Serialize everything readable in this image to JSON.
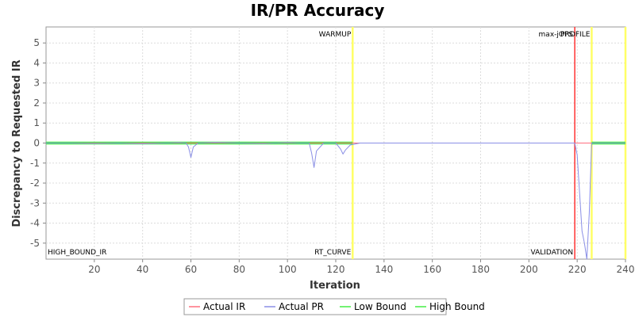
{
  "chart_data": {
    "type": "line",
    "title": "IR/PR Accuracy",
    "xlabel": "Iteration",
    "ylabel": "Discrepancy to Requested IR",
    "xlim": [
      0,
      240
    ],
    "ylim": [
      -5.8,
      5.8
    ],
    "xticks": [
      20,
      40,
      60,
      80,
      100,
      120,
      140,
      160,
      180,
      200,
      220,
      240
    ],
    "yticks": [
      -5,
      -4,
      -3,
      -2,
      -1,
      0,
      1,
      2,
      3,
      4,
      5
    ],
    "grid": true,
    "legend_position": "bottom",
    "series": [
      {
        "name": "Actual IR",
        "color": "#ff6f7f",
        "x": [
          0,
          30,
          60,
          90,
          120,
          150,
          180,
          210,
          240
        ],
        "values": [
          0,
          0,
          0,
          0,
          0,
          0,
          0,
          0,
          0
        ]
      },
      {
        "name": "Actual PR",
        "color": "#8a8fe6",
        "x": [
          0,
          10,
          20,
          30,
          40,
          50,
          55,
          58,
          59,
          60,
          61,
          63,
          70,
          80,
          90,
          100,
          105,
          109,
          110,
          111,
          112,
          115,
          120,
          122,
          123,
          124,
          126,
          130,
          140,
          160,
          180,
          200,
          218,
          219,
          220,
          221,
          222,
          223,
          224,
          225,
          226,
          230,
          240
        ],
        "values": [
          0,
          0,
          -0.02,
          0,
          -0.03,
          0,
          0.02,
          0,
          -0.2,
          -0.72,
          -0.2,
          0,
          0.03,
          0,
          -0.02,
          0.02,
          0,
          0,
          -0.5,
          -1.22,
          -0.4,
          0,
          0,
          -0.3,
          -0.55,
          -0.35,
          -0.1,
          0,
          0,
          0,
          0,
          0,
          0,
          0,
          -0.6,
          -2.5,
          -4.4,
          -5.0,
          -5.8,
          -3.5,
          0,
          0,
          0
        ]
      },
      {
        "name": "Low Bound",
        "color": "#44ee44",
        "x": [
          0,
          127,
          220,
          226,
          240
        ],
        "values": [
          -0.03,
          -0.03,
          null,
          -0.03,
          -0.03
        ]
      },
      {
        "name": "High Bound",
        "color": "#44ee44",
        "x": [
          0,
          127,
          220,
          226,
          240
        ],
        "values": [
          0.03,
          0.03,
          null,
          0.03,
          0.03
        ]
      }
    ],
    "markers": [
      {
        "label": "WARMUP",
        "x": 127,
        "color": "#ffff66",
        "position": "top"
      },
      {
        "label": "RT_CURVE",
        "x": 127,
        "color": "#ffff66",
        "position": "bottom"
      },
      {
        "label": "max-jOPS",
        "x": 219,
        "color": "#ff3333",
        "position": "top"
      },
      {
        "label": "VALIDATION",
        "x": 219,
        "color": "#ff3333",
        "position": "bottom"
      },
      {
        "label": "PROFILE",
        "x": 226,
        "color": "#ffff66",
        "position": "top"
      },
      {
        "label": "HIGH_BOUND_IR",
        "x": 0,
        "color": "#000000",
        "position": "bottom"
      },
      {
        "label": "",
        "x": 240,
        "color": "#ffff66",
        "position": "top"
      }
    ]
  }
}
